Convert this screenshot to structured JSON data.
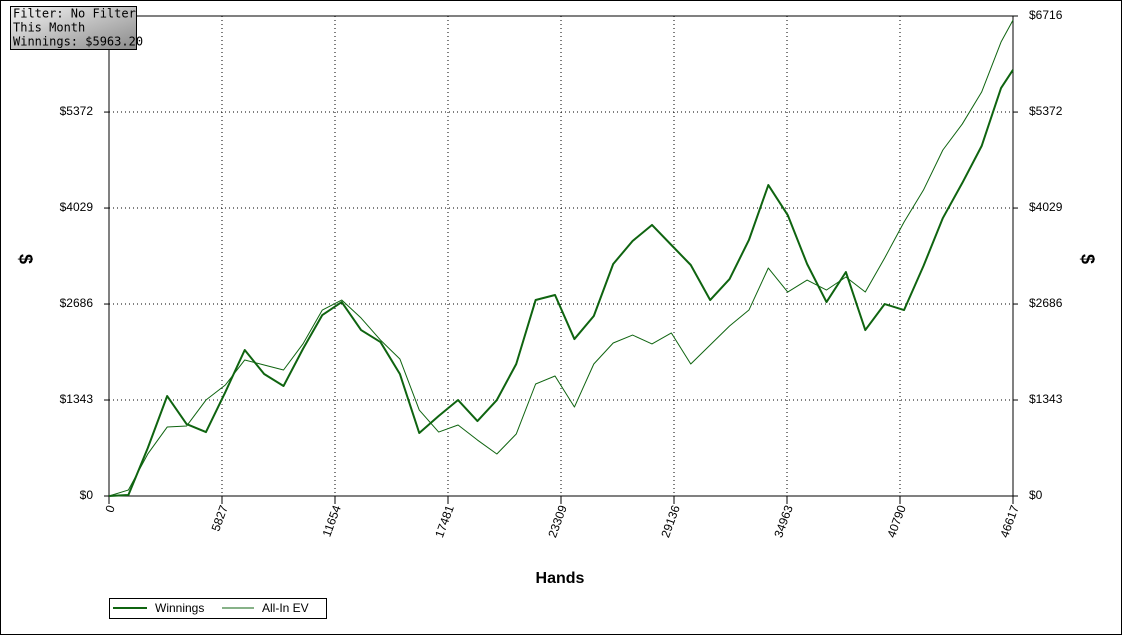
{
  "filter_box": {
    "lines": [
      "Filter: No Filter",
      "This Month",
      "Winnings: $5963.20"
    ]
  },
  "chart_data": {
    "type": "line",
    "x_label": "Hands",
    "y_label": "$",
    "x": [
      0,
      1000,
      2000,
      3000,
      4000,
      5000,
      6000,
      7000,
      8000,
      9000,
      10000,
      11000,
      12000,
      13000,
      14000,
      15000,
      16000,
      17000,
      18000,
      19000,
      20000,
      21000,
      22000,
      23000,
      24000,
      25000,
      26000,
      27000,
      28000,
      29000,
      30000,
      31000,
      32000,
      33000,
      34000,
      35000,
      36000,
      37000,
      38000,
      39000,
      40000,
      41000,
      42000,
      43000,
      44000,
      45000,
      46000,
      46617
    ],
    "xlim": [
      0,
      46617
    ],
    "xticks": [
      0,
      5827,
      11654,
      17481,
      23309,
      29136,
      34963,
      40790,
      46617
    ],
    "ylim": [
      0,
      6716
    ],
    "yticks": [
      {
        "value": 0,
        "label": "$0"
      },
      {
        "value": 1343,
        "label": "$1343"
      },
      {
        "value": 2686,
        "label": "$2686"
      },
      {
        "value": 4029,
        "label": "$4029"
      },
      {
        "value": 5372,
        "label": "$5372"
      },
      {
        "value": 6716,
        "label": "$6716"
      }
    ],
    "grid": true,
    "series": [
      {
        "name": "Winnings",
        "color": "#0f6410",
        "values": [
          0,
          14,
          672,
          1399,
          1007,
          895,
          1455,
          2043,
          1707,
          1539,
          2057,
          2532,
          2714,
          2322,
          2154,
          1707,
          881,
          1119,
          1343,
          1049,
          1343,
          1847,
          2742,
          2812,
          2196,
          2518,
          3246,
          3568,
          3792,
          3512,
          3232,
          2742,
          3036,
          3582,
          4351,
          3931,
          3246,
          2714,
          3134,
          2322,
          2686,
          2602,
          3218,
          3889,
          4379,
          4897,
          5708,
          5963
        ]
      },
      {
        "name": "All-In EV",
        "color": "#0f6410",
        "values": [
          0,
          84,
          588,
          965,
          979,
          1343,
          1553,
          1903,
          1833,
          1763,
          2127,
          2602,
          2742,
          2490,
          2182,
          1917,
          1203,
          895,
          993,
          783,
          588,
          867,
          1567,
          1679,
          1245,
          1847,
          2141,
          2252,
          2127,
          2281,
          1847,
          2113,
          2378,
          2602,
          3190,
          2854,
          3022,
          2882,
          3064,
          2854,
          3330,
          3834,
          4281,
          4841,
          5204,
          5652,
          6352,
          6659
        ]
      }
    ]
  }
}
